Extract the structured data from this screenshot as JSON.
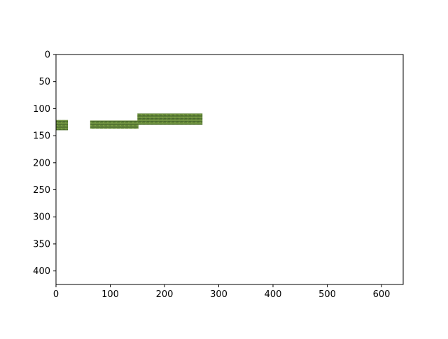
{
  "chart_data": {
    "type": "image",
    "title": "",
    "xlabel": "",
    "ylabel": "",
    "xlim": [
      0,
      640
    ],
    "ylim": [
      425,
      0
    ],
    "y_inverted": true,
    "grid": false,
    "x_ticks": [
      0,
      100,
      200,
      300,
      400,
      500,
      600
    ],
    "y_ticks": [
      0,
      50,
      100,
      150,
      200,
      250,
      300,
      350,
      400
    ],
    "x_tick_labels": [
      "0",
      "100",
      "200",
      "300",
      "400",
      "500",
      "600"
    ],
    "y_tick_labels": [
      "0",
      "50",
      "100",
      "150",
      "200",
      "250",
      "300",
      "350",
      "400"
    ],
    "image_patches": [
      {
        "x": [
          0,
          22
        ],
        "y": [
          121,
          140
        ],
        "color": "#6b8f3a"
      },
      {
        "x": [
          63,
          152
        ],
        "y": [
          122,
          137
        ],
        "color": "#4f7030"
      },
      {
        "x": [
          150,
          270
        ],
        "y": [
          109,
          130
        ],
        "color": "#5f8a36"
      }
    ],
    "colors": {
      "axes": "#000000",
      "background": "#ffffff",
      "vegetation_light": "#7fa34a",
      "vegetation_dark": "#2f4a1e"
    }
  }
}
